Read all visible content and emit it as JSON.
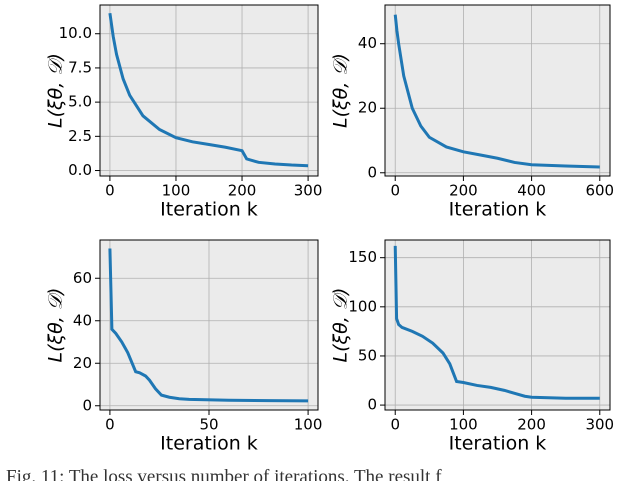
{
  "chart_data": [
    {
      "type": "line",
      "ylabel": "L(ξθ, 𝒟)",
      "xlabel": "Iteration k",
      "grid": true,
      "xlim": [
        -15,
        315
      ],
      "xticks": [
        0,
        100,
        200,
        300
      ],
      "ylim": [
        -0.4,
        12.1
      ],
      "yticks": [
        {
          "value": 0,
          "label": "0.0"
        },
        {
          "value": 2.5,
          "label": "2.5"
        },
        {
          "value": 5,
          "label": "5.0"
        },
        {
          "value": 7.5,
          "label": "7.5"
        },
        {
          "value": 10,
          "label": "10.0"
        }
      ],
      "series": [
        {
          "color": "#1f77b4",
          "x": [
            0,
            5,
            10,
            20,
            30,
            50,
            75,
            100,
            125,
            150,
            175,
            200,
            203,
            207,
            225,
            250,
            275,
            300
          ],
          "values": [
            11.5,
            9.8,
            8.5,
            6.7,
            5.5,
            4.0,
            3.0,
            2.4,
            2.1,
            1.9,
            1.7,
            1.45,
            1.2,
            0.85,
            0.6,
            0.48,
            0.4,
            0.35
          ]
        }
      ]
    },
    {
      "type": "line",
      "ylabel": "L(ξθ, 𝒟)",
      "xlabel": "Iteration k",
      "grid": true,
      "xlim": [
        -30,
        630
      ],
      "xticks": [
        0,
        200,
        400,
        600
      ],
      "ylim": [
        -1,
        52
      ],
      "yticks": [
        0,
        20,
        40
      ],
      "series": [
        {
          "color": "#1f77b4",
          "x": [
            0,
            5,
            10,
            25,
            50,
            75,
            100,
            150,
            200,
            250,
            300,
            350,
            400,
            500,
            600
          ],
          "values": [
            49,
            44,
            40,
            30,
            20,
            14.5,
            11,
            8,
            6.5,
            5.5,
            4.5,
            3.2,
            2.5,
            2.1,
            1.8
          ]
        }
      ]
    },
    {
      "type": "line",
      "ylabel": "L(ξθ, 𝒟)",
      "xlabel": "Iteration k",
      "grid": true,
      "xlim": [
        -5,
        105
      ],
      "xticks": [
        0,
        50,
        100
      ],
      "ylim": [
        -2,
        78
      ],
      "yticks": [
        0,
        20,
        40,
        60
      ],
      "series": [
        {
          "color": "#1f77b4",
          "x": [
            0,
            1,
            3,
            6,
            9,
            13,
            15,
            18,
            20,
            23,
            26,
            30,
            35,
            40,
            60,
            80,
            100
          ],
          "values": [
            74,
            36,
            34,
            30,
            25,
            16,
            15.5,
            14,
            12,
            8,
            5,
            4,
            3.3,
            3,
            2.6,
            2.4,
            2.3
          ]
        }
      ]
    },
    {
      "type": "line",
      "ylabel": "L(ξθ, 𝒟)",
      "xlabel": "Iteration k",
      "grid": true,
      "xlim": [
        -15,
        315
      ],
      "xticks": [
        0,
        100,
        200,
        300
      ],
      "ylim": [
        -5,
        168
      ],
      "yticks": [
        0,
        50,
        100,
        150
      ],
      "series": [
        {
          "color": "#1f77b4",
          "x": [
            0,
            2,
            5,
            10,
            25,
            40,
            55,
            70,
            80,
            85,
            90,
            100,
            120,
            140,
            160,
            175,
            190,
            200,
            250,
            300
          ],
          "values": [
            162,
            88,
            82,
            79,
            75,
            70,
            63,
            53,
            42,
            33,
            24,
            23,
            20,
            18,
            15,
            12,
            9,
            8,
            7,
            7
          ]
        }
      ]
    }
  ],
  "caption": "Fig. 11: The loss versus number of iterations. The result f"
}
